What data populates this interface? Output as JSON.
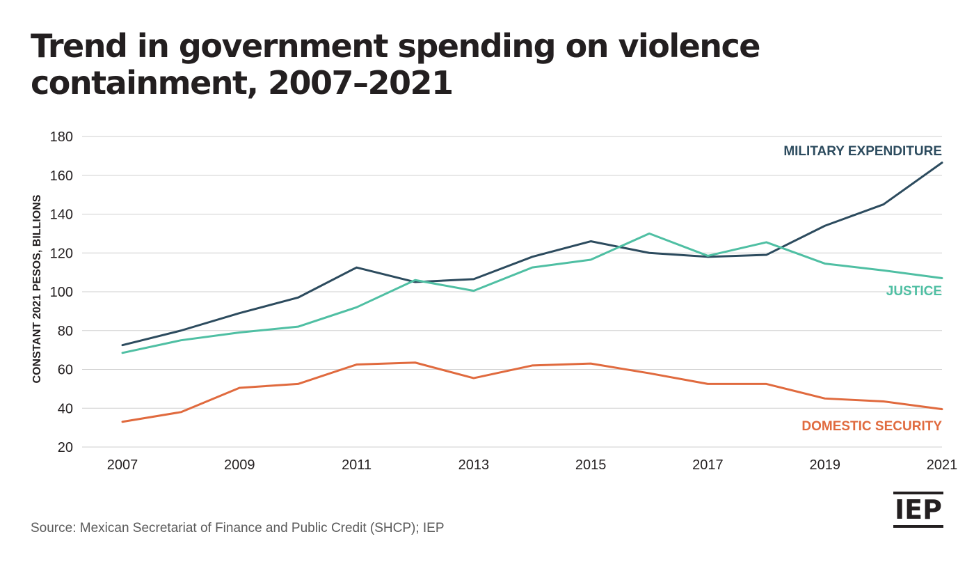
{
  "title": "Trend in government spending on violence containment, 2007–2021",
  "source": "Source: Mexican Secretariat of Finance and Public Credit (SHCP); IEP",
  "logo_text": "IEP",
  "chart_data": {
    "type": "line",
    "title": "Trend in government spending on violence containment, 2007–2021",
    "xlabel": "",
    "ylabel": "CONSTANT 2021 PESOS, BILLIONS",
    "x": [
      2007,
      2008,
      2009,
      2010,
      2011,
      2012,
      2013,
      2014,
      2015,
      2016,
      2017,
      2018,
      2019,
      2020,
      2021
    ],
    "x_ticks": [
      2007,
      2009,
      2011,
      2013,
      2015,
      2017,
      2019,
      2021
    ],
    "y_ticks": [
      20,
      40,
      60,
      80,
      100,
      120,
      140,
      160,
      180
    ],
    "ylim": [
      20,
      180
    ],
    "xlim": [
      2007,
      2021
    ],
    "grid": "horizontal",
    "legend": "direct labels at right end of lines",
    "series": [
      {
        "name": "MILITARY EXPENDITURE",
        "color": "#2c4b5e",
        "values": [
          72.5,
          80,
          89,
          97,
          112.5,
          105,
          106.5,
          118,
          126,
          120,
          118,
          119,
          134,
          145,
          166.5
        ]
      },
      {
        "name": "JUSTICE",
        "color": "#4fbfa3",
        "values": [
          68.5,
          75,
          79,
          82,
          92,
          106,
          100.5,
          112.5,
          116.5,
          130,
          118.5,
          125.5,
          114.5,
          111,
          107
        ]
      },
      {
        "name": "DOMESTIC SECURITY",
        "color": "#e06a3e",
        "values": [
          33,
          38,
          50.5,
          52.5,
          62.5,
          63.5,
          55.5,
          62,
          63,
          58,
          52.5,
          52.5,
          45,
          43.5,
          39.5
        ]
      }
    ]
  }
}
